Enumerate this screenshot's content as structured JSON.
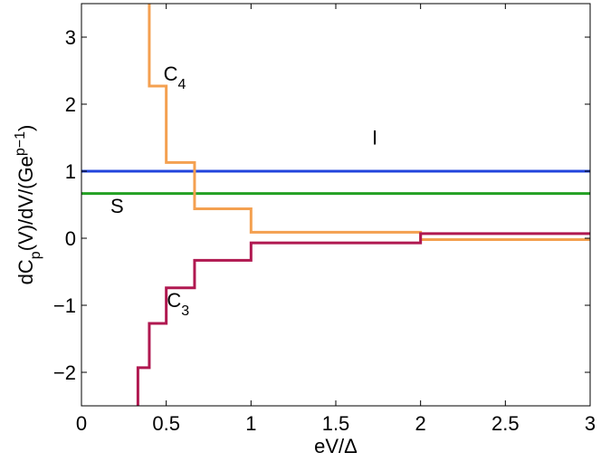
{
  "chart_data": {
    "type": "line",
    "xlabel": "eV/Δ",
    "ylabel": {
      "main": "dC",
      "sub_p": "p",
      "mid": "(V)/dV/(Ge",
      "sup": "p−1",
      "end": ")"
    },
    "xlim": [
      0,
      3
    ],
    "ylim": [
      -2.5,
      3.5
    ],
    "x_ticks": [
      {
        "value": 0,
        "label": "0"
      },
      {
        "value": 0.5,
        "label": "0.5"
      },
      {
        "value": 1,
        "label": "1"
      },
      {
        "value": 1.5,
        "label": "1.5"
      },
      {
        "value": 2,
        "label": "2"
      },
      {
        "value": 2.5,
        "label": "2.5"
      },
      {
        "value": 3,
        "label": "3"
      }
    ],
    "y_ticks": [
      {
        "value": -2,
        "label": "−2"
      },
      {
        "value": -1,
        "label": "−1"
      },
      {
        "value": 0,
        "label": "0"
      },
      {
        "value": 1,
        "label": "1"
      },
      {
        "value": 2,
        "label": "2"
      },
      {
        "value": 3,
        "label": "3"
      }
    ],
    "grid": false,
    "series": [
      {
        "name": "I",
        "color": "#2244dd",
        "x": [
          0,
          3
        ],
        "y": [
          1,
          1
        ]
      },
      {
        "name": "S",
        "color": "#22a022",
        "x": [
          0,
          3
        ],
        "y": [
          0.667,
          0.667
        ]
      },
      {
        "name": "C4",
        "color": "#f4a050",
        "x": [
          0.4,
          0.4,
          0.5,
          0.5,
          0.667,
          0.667,
          1.0,
          1.0,
          2.0,
          2.0,
          3.0
        ],
        "y": [
          3.6,
          2.27,
          2.27,
          1.13,
          1.13,
          0.44,
          0.44,
          0.09,
          0.09,
          -0.02,
          -0.02
        ]
      },
      {
        "name": "C3",
        "color": "#b01850",
        "x": [
          0.333,
          0.333,
          0.4,
          0.4,
          0.5,
          0.5,
          0.667,
          0.667,
          1.0,
          1.0,
          2.0,
          2.0,
          3.0
        ],
        "y": [
          -2.6,
          -1.93,
          -1.93,
          -1.27,
          -1.27,
          -0.74,
          -0.74,
          -0.33,
          -0.33,
          -0.07,
          -0.07,
          0.07,
          0.07
        ]
      }
    ],
    "annotations": [
      {
        "id": "C4",
        "main": "C",
        "sub": "4",
        "x": 0.55,
        "y": 2.35
      },
      {
        "id": "I",
        "main": "I",
        "sub": "",
        "x": 1.73,
        "y": 1.4
      },
      {
        "id": "S",
        "main": "S",
        "sub": "",
        "x": 0.21,
        "y": 0.38
      },
      {
        "id": "C3",
        "main": "C",
        "sub": "3",
        "x": 0.57,
        "y": -1.03
      }
    ]
  }
}
